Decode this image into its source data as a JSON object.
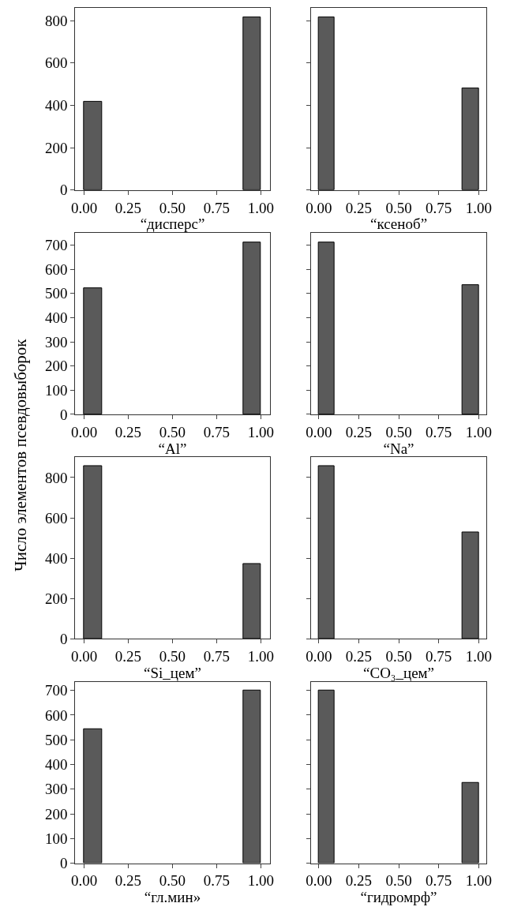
{
  "chart_data": [
    {
      "type": "histogram",
      "xlabel": "“дисперс”",
      "bins": [
        0,
        0.1,
        0.2,
        0.3,
        0.4,
        0.5,
        0.6,
        0.7,
        0.8,
        0.9,
        1.0
      ],
      "values": [
        415,
        0,
        0,
        0,
        0,
        0,
        0,
        0,
        0,
        815
      ],
      "color": "#5a5a5a",
      "xlim": [
        -0.05,
        1.05
      ],
      "xticks": [
        {
          "value": 0,
          "label": "0.00"
        },
        {
          "value": 0.25,
          "label": "0.25"
        },
        {
          "value": 0.5,
          "label": "0.50"
        },
        {
          "value": 0.75,
          "label": "0.75"
        },
        {
          "value": 1,
          "label": "1.00"
        }
      ],
      "ylim": [
        0,
        860
      ],
      "yticks": [
        0,
        200,
        400,
        600,
        800
      ]
    },
    {
      "type": "histogram",
      "xlabel": "“ксеноб”",
      "bins": [
        0,
        0.1,
        0.2,
        0.3,
        0.4,
        0.5,
        0.6,
        0.7,
        0.8,
        0.9,
        1.0
      ],
      "values": [
        815,
        0,
        0,
        0,
        0,
        0,
        0,
        0,
        0,
        480
      ],
      "color": "#5a5a5a",
      "xlim": [
        -0.05,
        1.05
      ],
      "xticks": [
        {
          "value": 0,
          "label": "0.00"
        },
        {
          "value": 0.25,
          "label": "0.25"
        },
        {
          "value": 0.5,
          "label": "0.50"
        },
        {
          "value": 0.75,
          "label": "0.75"
        },
        {
          "value": 1,
          "label": "1.00"
        }
      ],
      "ylim": [
        0,
        860
      ],
      "yticks": [
        0,
        200,
        400,
        600,
        800
      ],
      "tick_labels": "x"
    },
    {
      "type": "histogram",
      "xlabel": "“Al”",
      "ylabel": "Число элементов псевдовыборок",
      "bins": [
        0,
        0.1,
        0.2,
        0.3,
        0.4,
        0.5,
        0.6,
        0.7,
        0.8,
        0.9,
        1.0
      ],
      "values": [
        521,
        0,
        0,
        0,
        0,
        0,
        0,
        0,
        0,
        712
      ],
      "color": "#5a5a5a",
      "xlim": [
        -0.05,
        1.05
      ],
      "xticks": [
        {
          "value": 0,
          "label": "0.00"
        },
        {
          "value": 0.25,
          "label": "0.25"
        },
        {
          "value": 0.5,
          "label": "0.50"
        },
        {
          "value": 0.75,
          "label": "0.75"
        },
        {
          "value": 1,
          "label": "1.00"
        }
      ],
      "ylim": [
        0,
        750
      ],
      "yticks": [
        0,
        100,
        200,
        300,
        400,
        500,
        600,
        700
      ]
    },
    {
      "type": "histogram",
      "xlabel": "“Na”",
      "bins": [
        0,
        0.1,
        0.2,
        0.3,
        0.4,
        0.5,
        0.6,
        0.7,
        0.8,
        0.9,
        1.0
      ],
      "values": [
        712,
        0,
        0,
        0,
        0,
        0,
        0,
        0,
        0,
        535
      ],
      "color": "#5a5a5a",
      "xlim": [
        -0.05,
        1.05
      ],
      "xticks": [
        {
          "value": 0,
          "label": "0.00"
        },
        {
          "value": 0.25,
          "label": "0.25"
        },
        {
          "value": 0.5,
          "label": "0.50"
        },
        {
          "value": 0.75,
          "label": "0.75"
        },
        {
          "value": 1,
          "label": "1.00"
        }
      ],
      "ylim": [
        0,
        750
      ],
      "yticks": [
        0,
        100,
        200,
        300,
        400,
        500,
        600,
        700
      ],
      "tick_labels": "x"
    },
    {
      "type": "histogram",
      "xlabel": "“Si_цем”",
      "bins": [
        0,
        0.1,
        0.2,
        0.3,
        0.4,
        0.5,
        0.6,
        0.7,
        0.8,
        0.9,
        1.0
      ],
      "values": [
        858,
        0,
        0,
        0,
        0,
        0,
        0,
        0,
        0,
        372
      ],
      "color": "#5a5a5a",
      "xlim": [
        -0.05,
        1.05
      ],
      "xticks": [
        {
          "value": 0,
          "label": "0.00"
        },
        {
          "value": 0.25,
          "label": "0.25"
        },
        {
          "value": 0.5,
          "label": "0.50"
        },
        {
          "value": 0.75,
          "label": "0.75"
        },
        {
          "value": 1,
          "label": "1.00"
        }
      ],
      "ylim": [
        0,
        900
      ],
      "yticks": [
        0,
        200,
        400,
        600,
        800
      ]
    },
    {
      "type": "histogram",
      "xlabel": "“CO₃_цем”",
      "bins": [
        0,
        0.1,
        0.2,
        0.3,
        0.4,
        0.5,
        0.6,
        0.7,
        0.8,
        0.9,
        1.0
      ],
      "values": [
        858,
        0,
        0,
        0,
        0,
        0,
        0,
        0,
        0,
        527
      ],
      "color": "#5a5a5a",
      "xlim": [
        -0.05,
        1.05
      ],
      "xticks": [
        {
          "value": 0,
          "label": "0.00"
        },
        {
          "value": 0.25,
          "label": "0.25"
        },
        {
          "value": 0.5,
          "label": "0.50"
        },
        {
          "value": 0.75,
          "label": "0.75"
        },
        {
          "value": 1,
          "label": "1.00"
        }
      ],
      "ylim": [
        0,
        900
      ],
      "yticks": [
        0,
        200,
        400,
        600,
        800
      ],
      "tick_labels": "x"
    },
    {
      "type": "histogram",
      "xlabel": "“гл.мин»",
      "bins": [
        0,
        0.1,
        0.2,
        0.3,
        0.4,
        0.5,
        0.6,
        0.7,
        0.8,
        0.9,
        1.0
      ],
      "values": [
        542,
        0,
        0,
        0,
        0,
        0,
        0,
        0,
        0,
        700
      ],
      "color": "#5a5a5a",
      "xlim": [
        -0.05,
        1.05
      ],
      "xticks": [
        {
          "value": 0,
          "label": "0.00"
        },
        {
          "value": 0.25,
          "label": "0.25"
        },
        {
          "value": 0.5,
          "label": "0.50"
        },
        {
          "value": 0.75,
          "label": "0.75"
        },
        {
          "value": 1,
          "label": "1.00"
        }
      ],
      "ylim": [
        0,
        735
      ],
      "yticks": [
        0,
        100,
        200,
        300,
        400,
        500,
        600,
        700
      ]
    },
    {
      "type": "histogram",
      "xlabel": "“гидромрф”",
      "bins": [
        0,
        0.1,
        0.2,
        0.3,
        0.4,
        0.5,
        0.6,
        0.7,
        0.8,
        0.9,
        1.0
      ],
      "values": [
        700,
        0,
        0,
        0,
        0,
        0,
        0,
        0,
        0,
        325
      ],
      "color": "#5a5a5a",
      "xlim": [
        -0.05,
        1.05
      ],
      "xticks": [
        {
          "value": 0,
          "label": "0.00"
        },
        {
          "value": 0.25,
          "label": "0.25"
        },
        {
          "value": 0.5,
          "label": "0.50"
        },
        {
          "value": 0.75,
          "label": "0.75"
        },
        {
          "value": 1,
          "label": "1.00"
        }
      ],
      "ylim": [
        0,
        735
      ],
      "yticks": [
        0,
        100,
        200,
        300,
        400,
        500,
        600,
        700
      ],
      "tick_labels": "x"
    }
  ]
}
